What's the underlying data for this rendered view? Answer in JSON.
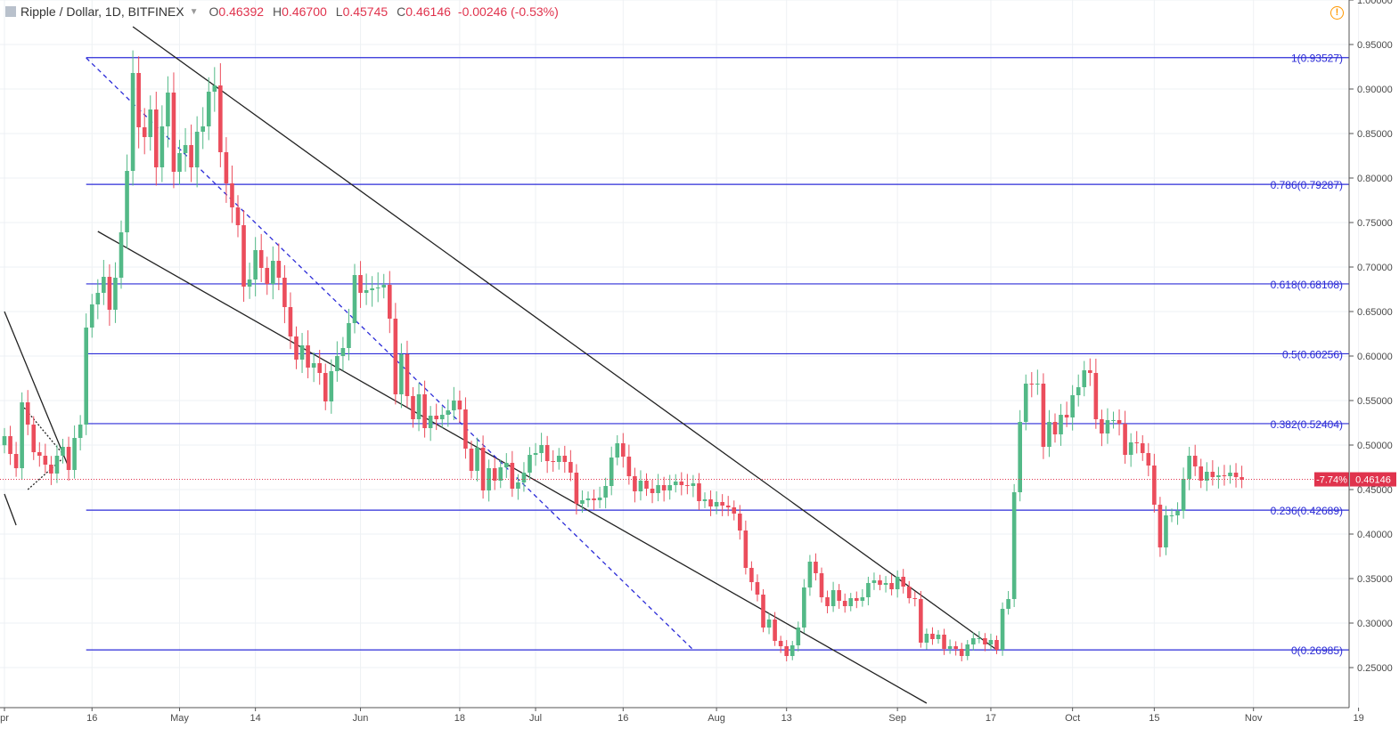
{
  "header": {
    "symbol": "Ripple / Dollar, 1D, BITFINEX",
    "o_label": "O",
    "o_value": "0.46392",
    "h_label": "H",
    "h_value": "0.46700",
    "l_label": "L",
    "l_value": "0.45745",
    "c_label": "C",
    "c_value": "0.46146",
    "change": "-0.00246 (-0.53%)",
    "warning_icon": "warning-circle-icon"
  },
  "colors": {
    "up": "#53b987",
    "down": "#eb4d5c",
    "fib": "#2c2cd8",
    "fib_text": "#2a2ad6",
    "trend": "#000000",
    "grid": "#eef1f4",
    "axis_text": "#4a4a4a",
    "price_line": "#e0334d"
  },
  "chart_data": {
    "type": "candlestick",
    "symbol": "Ripple / Dollar",
    "timeframe": "1D",
    "exchange": "BITFINEX",
    "y_range": [
      0.205,
      1.0
    ],
    "y_ticks": [
      "1.00000",
      "0.95000",
      "0.90000",
      "0.85000",
      "0.80000",
      "0.75000",
      "0.70000",
      "0.65000",
      "0.60000",
      "0.55000",
      "0.50000",
      "0.45000",
      "0.40000",
      "0.35000",
      "0.30000",
      "0.25000"
    ],
    "x_ticks": [
      {
        "label": "pr",
        "date": "2018-04-01"
      },
      {
        "label": "16",
        "date": "2018-04-16"
      },
      {
        "label": "May",
        "date": "2018-05-01"
      },
      {
        "label": "14",
        "date": "2018-05-14"
      },
      {
        "label": "Jun",
        "date": "2018-06-01"
      },
      {
        "label": "18",
        "date": "2018-06-18"
      },
      {
        "label": "Jul",
        "date": "2018-07-01"
      },
      {
        "label": "16",
        "date": "2018-07-16"
      },
      {
        "label": "Aug",
        "date": "2018-08-01"
      },
      {
        "label": "13",
        "date": "2018-08-13"
      },
      {
        "label": "Sep",
        "date": "2018-09-01"
      },
      {
        "label": "17",
        "date": "2018-09-17"
      },
      {
        "label": "Oct",
        "date": "2018-10-01"
      },
      {
        "label": "15",
        "date": "2018-10-15"
      },
      {
        "label": "Nov",
        "date": "2018-11-01"
      },
      {
        "label": "19",
        "date": "2018-11-19"
      }
    ],
    "start_date": "2018-04-01",
    "closes": [
      0.51,
      0.49,
      0.474,
      0.548,
      0.523,
      0.492,
      0.488,
      0.478,
      0.468,
      0.488,
      0.498,
      0.472,
      0.508,
      0.523,
      0.632,
      0.658,
      0.671,
      0.689,
      0.652,
      0.688,
      0.739,
      0.808,
      0.918,
      0.857,
      0.846,
      0.877,
      0.812,
      0.858,
      0.896,
      0.807,
      0.828,
      0.837,
      0.812,
      0.852,
      0.858,
      0.897,
      0.904,
      0.829,
      0.794,
      0.767,
      0.747,
      0.678,
      0.686,
      0.719,
      0.699,
      0.681,
      0.707,
      0.688,
      0.655,
      0.622,
      0.596,
      0.612,
      0.587,
      0.592,
      0.581,
      0.549,
      0.583,
      0.6,
      0.609,
      0.637,
      0.691,
      0.671,
      0.674,
      0.676,
      0.677,
      0.68,
      0.642,
      0.557,
      0.602,
      0.555,
      0.529,
      0.557,
      0.519,
      0.533,
      0.529,
      0.534,
      0.539,
      0.55,
      0.54,
      0.496,
      0.471,
      0.497,
      0.449,
      0.474,
      0.46,
      0.475,
      0.48,
      0.451,
      0.458,
      0.469,
      0.489,
      0.491,
      0.5,
      0.482,
      0.481,
      0.488,
      0.481,
      0.469,
      0.434,
      0.438,
      0.44,
      0.438,
      0.441,
      0.454,
      0.486,
      0.502,
      0.487,
      0.465,
      0.448,
      0.46,
      0.451,
      0.446,
      0.455,
      0.449,
      0.455,
      0.459,
      0.455,
      0.454,
      0.457,
      0.437,
      0.439,
      0.431,
      0.436,
      0.432,
      0.43,
      0.423,
      0.404,
      0.362,
      0.346,
      0.332,
      0.295,
      0.304,
      0.28,
      0.274,
      0.263,
      0.275,
      0.295,
      0.34,
      0.369,
      0.356,
      0.329,
      0.319,
      0.337,
      0.325,
      0.319,
      0.328,
      0.325,
      0.329,
      0.345,
      0.348,
      0.343,
      0.345,
      0.338,
      0.352,
      0.341,
      0.328,
      0.327,
      0.278,
      0.288,
      0.282,
      0.287,
      0.271,
      0.274,
      0.271,
      0.263,
      0.276,
      0.283,
      0.283,
      0.276,
      0.281,
      0.27,
      0.316,
      0.327,
      0.447,
      0.526,
      0.569,
      0.568,
      0.569,
      0.498,
      0.526,
      0.512,
      0.534,
      0.531,
      0.556,
      0.565,
      0.584,
      0.581,
      0.529,
      0.513,
      0.528,
      0.528,
      0.524,
      0.489,
      0.503,
      0.502,
      0.491,
      0.477,
      0.433,
      0.385,
      0.421,
      0.421,
      0.426,
      0.462,
      0.488,
      0.476,
      0.46,
      0.47,
      0.464,
      0.466,
      0.465,
      0.469,
      0.464,
      0.461
    ]
  },
  "fib_levels": [
    {
      "ratio": 1,
      "value": 0.93527,
      "label": "1(0.93527)"
    },
    {
      "ratio": 0.786,
      "value": 0.79287,
      "label": "0.786(0.79287)"
    },
    {
      "ratio": 0.618,
      "value": 0.68108,
      "label": "0.618(0.68108)"
    },
    {
      "ratio": 0.5,
      "value": 0.60256,
      "label": "0.5(0.60256)"
    },
    {
      "ratio": 0.382,
      "value": 0.52404,
      "label": "0.382(0.52404)"
    },
    {
      "ratio": 0.236,
      "value": 0.42689,
      "label": "0.236(0.42689)"
    },
    {
      "ratio": 0,
      "value": 0.26985,
      "label": "0(0.26985)"
    }
  ],
  "price_tag": {
    "change_pct": "-7.74%",
    "last_price": "0.46146",
    "value": 0.46146
  },
  "trend_lines": [
    {
      "style": "solid",
      "from": {
        "date": "2018-04-23",
        "price": 0.97
      },
      "to": {
        "date": "2018-09-18",
        "price": 0.27
      }
    },
    {
      "style": "solid",
      "from": {
        "date": "2018-04-17",
        "price": 0.74
      },
      "to": {
        "date": "2018-09-06",
        "price": 0.21
      }
    },
    {
      "style": "dashed",
      "from": {
        "date": "2018-04-15",
        "price": 0.935
      },
      "to": {
        "date": "2018-07-28",
        "price": 0.27
      }
    },
    {
      "style": "solid",
      "from": {
        "date": "2018-04-01",
        "price": 0.65
      },
      "to": {
        "date": "2018-04-12",
        "price": 0.475
      }
    },
    {
      "style": "solid",
      "from": {
        "date": "2018-04-01",
        "price": 0.445
      },
      "to": {
        "date": "2018-04-03",
        "price": 0.41
      }
    },
    {
      "style": "dotted",
      "from": {
        "date": "2018-04-05",
        "price": 0.45
      },
      "to": {
        "date": "2018-04-11",
        "price": 0.485
      }
    },
    {
      "style": "dotted",
      "from": {
        "date": "2018-04-04",
        "price": 0.545
      },
      "to": {
        "date": "2018-04-11",
        "price": 0.49
      }
    }
  ]
}
